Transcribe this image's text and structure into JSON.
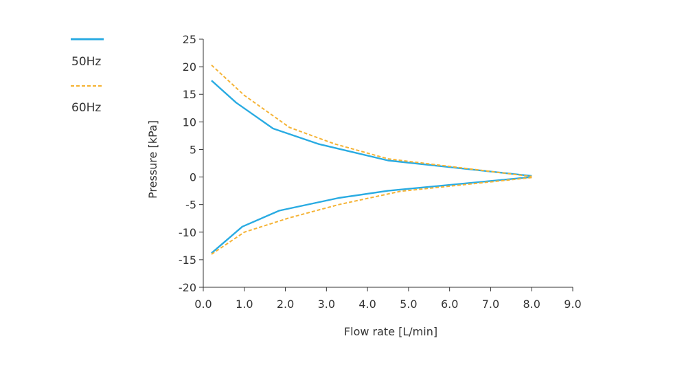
{
  "chart_data": {
    "type": "line",
    "title": "",
    "xlabel": "Flow rate [L/min]",
    "ylabel": "Pressure [kPa]",
    "xlim": [
      0,
      9
    ],
    "ylim": [
      -20,
      25
    ],
    "xticks": [
      "0.0",
      "1.0",
      "2.0",
      "3.0",
      "4.0",
      "5.0",
      "6.0",
      "7.0",
      "8.0",
      "9.0"
    ],
    "yticks": [
      "25",
      "20",
      "15",
      "10",
      "5",
      "0",
      "-5",
      "-10",
      "-15",
      "-20"
    ],
    "grid": false,
    "legend_position": "top-left",
    "series": [
      {
        "name": "50Hz",
        "color": "#29ABE2",
        "style": "solid",
        "upper": {
          "x": [
            0.2,
            0.8,
            1.7,
            2.8,
            4.5,
            8.0
          ],
          "y": [
            17.5,
            13.5,
            8.8,
            6.0,
            3.0,
            0.2
          ]
        },
        "lower": {
          "x": [
            0.2,
            0.95,
            1.85,
            3.3,
            4.5,
            8.0
          ],
          "y": [
            -13.8,
            -9.0,
            -6.1,
            -3.8,
            -2.5,
            0.0
          ]
        }
      },
      {
        "name": "60Hz",
        "color": "#F5B335",
        "style": "dashed",
        "upper": {
          "x": [
            0.2,
            1.0,
            2.1,
            3.2,
            4.5,
            8.0
          ],
          "y": [
            20.3,
            14.8,
            9.0,
            6.0,
            3.3,
            0.1
          ]
        },
        "lower": {
          "x": [
            0.2,
            1.0,
            2.1,
            3.3,
            4.8,
            8.0
          ],
          "y": [
            -14.0,
            -10.0,
            -7.4,
            -5.0,
            -2.6,
            -0.1
          ]
        }
      }
    ]
  }
}
